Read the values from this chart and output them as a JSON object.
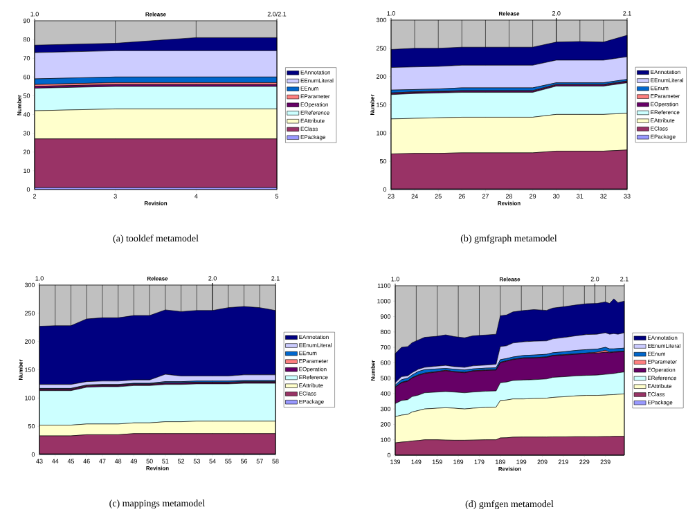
{
  "chart_data": [
    {
      "type": "area",
      "stacked": true,
      "title": "(a) tooldef metamodel",
      "xlabel": "Revision",
      "ylabel": "Number",
      "annotations": [
        "Release",
        "1.0",
        "2.0/2.1"
      ],
      "grid": "x",
      "legend": "right",
      "x": [
        2,
        3,
        4,
        5
      ],
      "xlim": [
        2,
        5
      ],
      "xticks": [
        2,
        3,
        4,
        5
      ],
      "ylim": [
        0,
        90
      ],
      "yticks": [
        0,
        10,
        20,
        30,
        40,
        50,
        60,
        70,
        80,
        90
      ],
      "series": [
        {
          "name": "EPackage",
          "color": "#9999ff",
          "values": [
            1,
            1,
            1,
            1
          ]
        },
        {
          "name": "EClass",
          "color": "#993366",
          "values": [
            26,
            26,
            26,
            26
          ]
        },
        {
          "name": "EAttribute",
          "color": "#ffffcc",
          "values": [
            15,
            16,
            16,
            16
          ]
        },
        {
          "name": "EReference",
          "color": "#ccffff",
          "values": [
            12,
            12,
            12,
            12
          ]
        },
        {
          "name": "EOperation",
          "color": "#660066",
          "values": [
            1,
            1,
            1,
            1
          ]
        },
        {
          "name": "EParameter",
          "color": "#ff8080",
          "values": [
            1,
            1,
            1,
            1
          ]
        },
        {
          "name": "EEnum",
          "color": "#0066cc",
          "values": [
            3,
            3,
            3,
            3
          ]
        },
        {
          "name": "EEnumLiteral",
          "color": "#ccccff",
          "values": [
            14,
            14,
            14,
            14
          ]
        },
        {
          "name": "EAnnotation",
          "color": "#000080",
          "values": [
            4,
            4,
            7,
            7
          ]
        }
      ]
    },
    {
      "type": "area",
      "stacked": true,
      "title": "(b) gmfgraph metamodel",
      "xlabel": "Revision",
      "ylabel": "Number",
      "annotations": [
        "Release",
        "1.0",
        "2.0",
        "2.1"
      ],
      "grid": "x",
      "legend": "right",
      "x": [
        23,
        24,
        25,
        26,
        27,
        28,
        29,
        30,
        31,
        32,
        33
      ],
      "xlim": [
        23,
        33
      ],
      "xticks": [
        23,
        24,
        25,
        26,
        27,
        28,
        29,
        30,
        31,
        32,
        33
      ],
      "ylim": [
        0,
        300
      ],
      "yticks": [
        0,
        50,
        100,
        150,
        200,
        250,
        300
      ],
      "ref_lines": [
        {
          "axis": "x",
          "value": 30
        }
      ],
      "series": [
        {
          "name": "EPackage",
          "color": "#9999ff",
          "values": [
            1,
            1,
            1,
            1,
            1,
            1,
            1,
            1,
            1,
            1,
            1
          ]
        },
        {
          "name": "EClass",
          "color": "#993366",
          "values": [
            62,
            63,
            63,
            64,
            64,
            64,
            64,
            67,
            67,
            67,
            69
          ]
        },
        {
          "name": "EAttribute",
          "color": "#ffffcc",
          "values": [
            62,
            62,
            63,
            63,
            63,
            63,
            63,
            65,
            65,
            65,
            65
          ]
        },
        {
          "name": "EReference",
          "color": "#ccffff",
          "values": [
            43,
            44,
            44,
            44,
            44,
            44,
            44,
            50,
            50,
            50,
            54
          ]
        },
        {
          "name": "EOperation",
          "color": "#660066",
          "values": [
            2,
            2,
            2,
            2,
            2,
            2,
            2,
            2,
            2,
            2,
            2
          ]
        },
        {
          "name": "EParameter",
          "color": "#ff8080",
          "values": [
            1,
            1,
            1,
            1,
            1,
            1,
            1,
            1,
            1,
            1,
            1
          ]
        },
        {
          "name": "EEnum",
          "color": "#0066cc",
          "values": [
            5,
            4,
            4,
            5,
            5,
            5,
            5,
            3,
            3,
            3,
            3
          ]
        },
        {
          "name": "EEnumLiteral",
          "color": "#ccccff",
          "values": [
            40,
            40,
            40,
            40,
            40,
            40,
            40,
            40,
            40,
            40,
            40
          ]
        },
        {
          "name": "EAnnotation",
          "color": "#000080",
          "values": [
            32,
            33,
            32,
            32,
            32,
            32,
            32,
            32,
            33,
            32,
            38
          ]
        }
      ]
    },
    {
      "type": "area",
      "stacked": true,
      "title": "(c) mappings metamodel",
      "xlabel": "Revision",
      "ylabel": "Number",
      "annotations": [
        "Release",
        "1.0",
        "2.0",
        "2.1"
      ],
      "grid": "x",
      "legend": "right",
      "x": [
        43,
        44,
        45,
        46,
        47,
        48,
        49,
        50,
        51,
        52,
        53,
        54,
        55,
        56,
        57,
        58
      ],
      "xlim": [
        43,
        58
      ],
      "xticks": [
        43,
        44,
        45,
        46,
        47,
        48,
        49,
        50,
        51,
        52,
        53,
        54,
        55,
        56,
        57,
        58
      ],
      "ylim": [
        0,
        300
      ],
      "yticks": [
        0,
        50,
        100,
        150,
        200,
        250,
        300
      ],
      "ref_lines": [
        {
          "axis": "x",
          "value": 54
        }
      ],
      "series": [
        {
          "name": "EPackage",
          "color": "#9999ff",
          "values": [
            1,
            1,
            1,
            1,
            1,
            1,
            1,
            1,
            1,
            1,
            1,
            1,
            1,
            1,
            1,
            1
          ]
        },
        {
          "name": "EClass",
          "color": "#993366",
          "values": [
            32,
            32,
            32,
            34,
            34,
            34,
            36,
            36,
            36,
            36,
            36,
            36,
            36,
            36,
            36,
            36
          ]
        },
        {
          "name": "EAttribute",
          "color": "#ffffcc",
          "values": [
            19,
            19,
            19,
            19,
            19,
            19,
            19,
            19,
            21,
            21,
            22,
            22,
            22,
            22,
            22,
            22
          ]
        },
        {
          "name": "EReference",
          "color": "#ccffff",
          "values": [
            61,
            61,
            61,
            65,
            66,
            66,
            66,
            66,
            66,
            66,
            66,
            66,
            66,
            67,
            67,
            67
          ]
        },
        {
          "name": "EOperation",
          "color": "#660066",
          "values": [
            2,
            2,
            2,
            2,
            2,
            2,
            2,
            2,
            2,
            2,
            2,
            2,
            2,
            2,
            2,
            2
          ]
        },
        {
          "name": "EParameter",
          "color": "#ff8080",
          "values": [
            1,
            1,
            1,
            1,
            1,
            1,
            1,
            1,
            1,
            1,
            1,
            1,
            1,
            1,
            1,
            1
          ]
        },
        {
          "name": "EEnum",
          "color": "#0066cc",
          "values": [
            1,
            1,
            1,
            1,
            1,
            1,
            1,
            1,
            2,
            2,
            2,
            2,
            2,
            2,
            2,
            2
          ]
        },
        {
          "name": "EEnumLiteral",
          "color": "#ccccff",
          "values": [
            7,
            7,
            7,
            6,
            6,
            6,
            6,
            6,
            13,
            10,
            9,
            9,
            9,
            10,
            10,
            10
          ]
        },
        {
          "name": "EAnnotation",
          "color": "#000080",
          "values": [
            103,
            104,
            104,
            111,
            112,
            112,
            114,
            114,
            114,
            114,
            116,
            116,
            121,
            121,
            119,
            114
          ]
        }
      ]
    },
    {
      "type": "area",
      "stacked": true,
      "title": "(d) gmfgen metamodel",
      "xlabel": "Revision",
      "ylabel": "Number",
      "annotations": [
        "Release",
        "1.0",
        "2.0",
        "2.1"
      ],
      "grid": "x",
      "legend": "right",
      "x": [
        139,
        142,
        145,
        147,
        150,
        153,
        159,
        163,
        167,
        172,
        176,
        182,
        187,
        189,
        192,
        195,
        200,
        205,
        211,
        214,
        220,
        225,
        230,
        235,
        239,
        241,
        243,
        245,
        248
      ],
      "xlim": [
        139,
        248
      ],
      "xticks": [
        139,
        149,
        159,
        169,
        179,
        189,
        199,
        209,
        219,
        229,
        239
      ],
      "ylim": [
        0,
        1100
      ],
      "yticks": [
        0,
        100,
        200,
        300,
        400,
        500,
        600,
        700,
        800,
        900,
        1000,
        1100
      ],
      "ref_lines": [
        {
          "axis": "x",
          "value": 234
        }
      ],
      "series": [
        {
          "name": "EPackage",
          "color": "#9999ff",
          "values": [
            1,
            1,
            1,
            1,
            1,
            1,
            1,
            1,
            1,
            1,
            1,
            1,
            1,
            1,
            1,
            1,
            1,
            1,
            1,
            1,
            1,
            1,
            1,
            1,
            1,
            1,
            1,
            1,
            1
          ]
        },
        {
          "name": "EClass",
          "color": "#993366",
          "values": [
            79,
            84,
            87,
            91,
            94,
            99,
            99,
            97,
            96,
            96,
            97,
            99,
            99,
            111,
            112,
            116,
            117,
            117,
            117,
            118,
            118,
            119,
            119,
            119,
            120,
            120,
            121,
            121,
            121
          ]
        },
        {
          "name": "EAttribute",
          "color": "#ffffcc",
          "values": [
            170,
            175,
            177,
            188,
            195,
            200,
            205,
            210,
            208,
            203,
            207,
            210,
            212,
            243,
            245,
            248,
            247,
            250,
            252,
            256,
            261,
            265,
            268,
            268,
            269,
            271,
            271,
            273,
            276
          ]
        },
        {
          "name": "EReference",
          "color": "#ccffff",
          "values": [
            85,
            95,
            95,
            100,
            100,
            105,
            105,
            105,
            105,
            105,
            105,
            105,
            105,
            115,
            117,
            120,
            123,
            122,
            125,
            130,
            130,
            130,
            130,
            132,
            135,
            135,
            137,
            140,
            142
          ]
        },
        {
          "name": "EOperation",
          "color": "#660066",
          "values": [
            105,
            115,
            120,
            120,
            128,
            125,
            130,
            135,
            130,
            130,
            135,
            135,
            135,
            130,
            135,
            135,
            141,
            140,
            140,
            140,
            140,
            140,
            142,
            142,
            143,
            138,
            138,
            135,
            132
          ]
        },
        {
          "name": "EParameter",
          "color": "#ff8080",
          "values": [
            3,
            3,
            3,
            3,
            3,
            3,
            3,
            3,
            3,
            3,
            3,
            3,
            3,
            3,
            3,
            3,
            3,
            3,
            3,
            3,
            3,
            3,
            3,
            6,
            12,
            3,
            3,
            3,
            3
          ]
        },
        {
          "name": "EEnum",
          "color": "#0066cc",
          "values": [
            12,
            17,
            17,
            17,
            22,
            22,
            17,
            12,
            15,
            15,
            12,
            12,
            12,
            17,
            14,
            14,
            15,
            17,
            17,
            17,
            19,
            22,
            22,
            20,
            20,
            22,
            19,
            19,
            20
          ]
        },
        {
          "name": "EEnumLiteral",
          "color": "#ccccff",
          "values": [
            15,
            20,
            15,
            15,
            15,
            15,
            18,
            20,
            17,
            17,
            20,
            20,
            23,
            85,
            83,
            91,
            89,
            90,
            87,
            90,
            93,
            95,
            98,
            97,
            95,
            95,
            99,
            93,
            100
          ]
        },
        {
          "name": "EAnnotation",
          "color": "#000080",
          "values": [
            190,
            190,
            190,
            195,
            190,
            195,
            194,
            198,
            195,
            192,
            195,
            195,
            195,
            200,
            200,
            202,
            203,
            205,
            198,
            200,
            200,
            200,
            200,
            200,
            200,
            200,
            226,
            205,
            205
          ]
        }
      ]
    }
  ]
}
